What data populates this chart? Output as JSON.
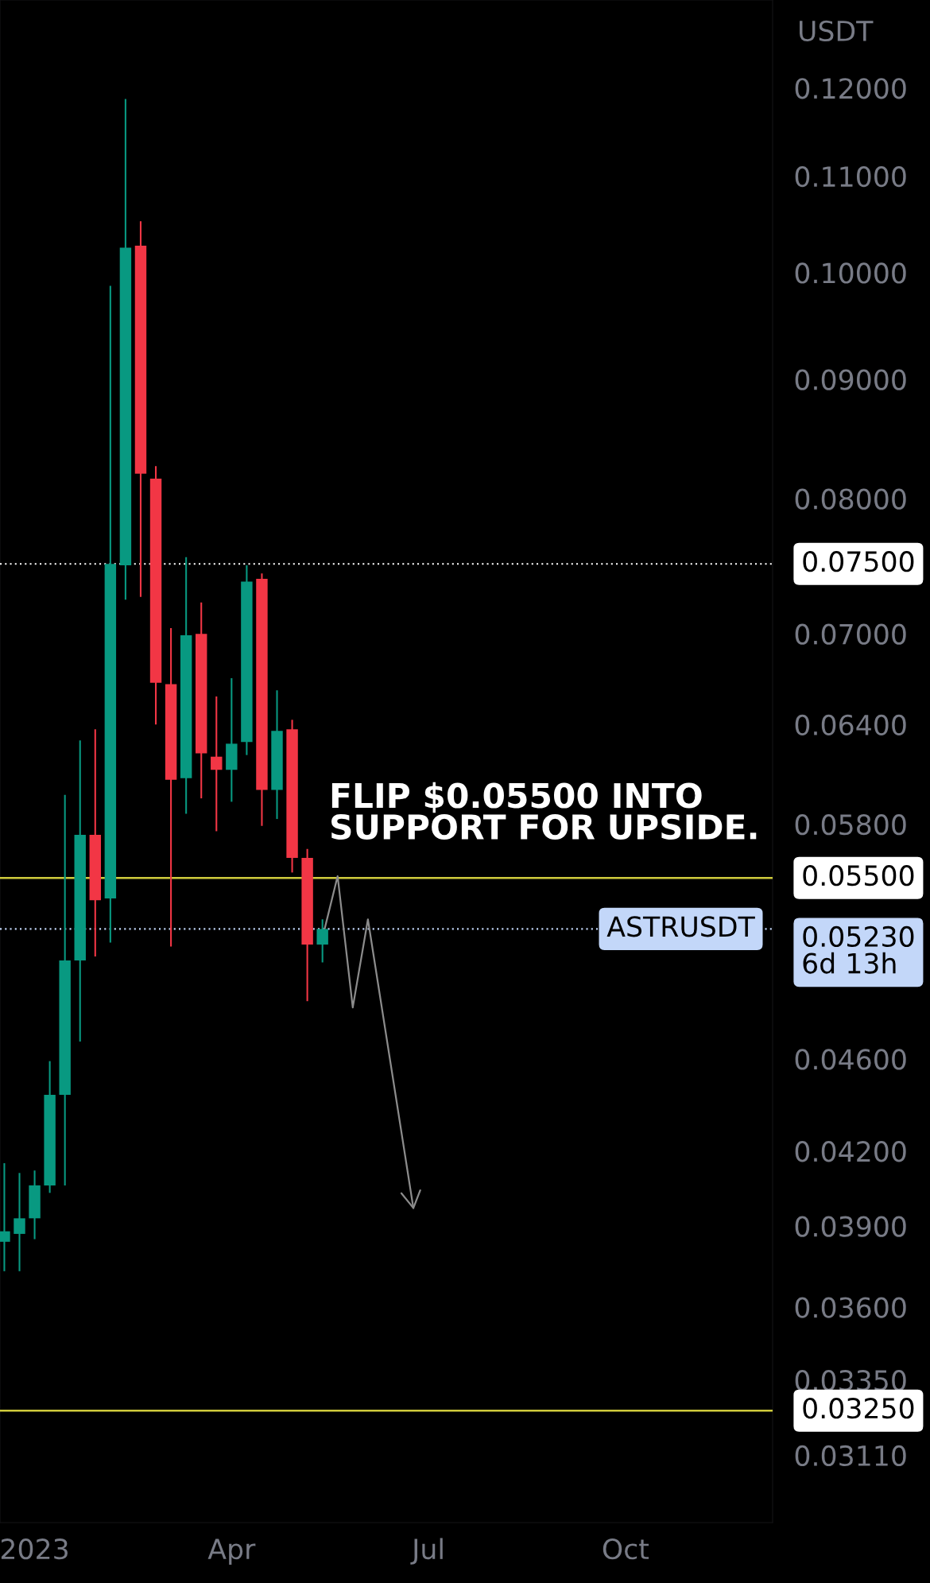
{
  "chart_data": {
    "type": "candlestick",
    "ylabel": "USDT",
    "annotations": [
      "FLIP $0.05500 INTO\nSUPPORT FOR UPSIDE.",
      {
        "text": "ASTRUSDT",
        "y": 0.0523
      }
    ],
    "x": [
      "2022-12-19",
      "2022-12-26",
      "2023-01-02",
      "2023-01-09",
      "2023-01-16",
      "2023-01-23",
      "2023-01-30",
      "2023-02-06",
      "2023-02-13",
      "2023-02-20",
      "2023-02-27",
      "2023-03-06",
      "2023-03-13",
      "2023-03-20",
      "2023-03-27",
      "2023-04-03",
      "2023-04-10",
      "2023-04-17",
      "2023-04-24",
      "2023-05-01",
      "2023-05-08",
      "2023-05-15"
    ],
    "ohlc": [
      [
        0.0384,
        0.0415,
        0.0373,
        0.0388
      ],
      [
        0.0387,
        0.0411,
        0.0373,
        0.0393
      ],
      [
        0.0393,
        0.0412,
        0.0385,
        0.0406
      ],
      [
        0.0406,
        0.0459,
        0.0403,
        0.0444
      ],
      [
        0.0444,
        0.0597,
        0.0406,
        0.0507
      ],
      [
        0.0507,
        0.063,
        0.0468,
        0.0574
      ],
      [
        0.0574,
        0.0637,
        0.0509,
        0.0538
      ],
      [
        0.0539,
        0.0987,
        0.0516,
        0.075
      ],
      [
        0.0749,
        0.1187,
        0.0724,
        0.1025
      ],
      [
        0.1027,
        0.1052,
        0.0726,
        0.082
      ],
      [
        0.0816,
        0.0826,
        0.064,
        0.0667
      ],
      [
        0.0666,
        0.0704,
        0.0514,
        0.0606
      ],
      [
        0.0607,
        0.0755,
        0.0586,
        0.0699
      ],
      [
        0.07,
        0.0722,
        0.0595,
        0.0622
      ],
      [
        0.062,
        0.0658,
        0.0576,
        0.0612
      ],
      [
        0.0612,
        0.067,
        0.0593,
        0.0628
      ],
      [
        0.0629,
        0.0749,
        0.0621,
        0.0737
      ],
      [
        0.0739,
        0.0743,
        0.0579,
        0.06
      ],
      [
        0.06,
        0.0662,
        0.0583,
        0.0636
      ],
      [
        0.0637,
        0.0643,
        0.0553,
        0.0561
      ],
      [
        0.0561,
        0.0566,
        0.0487,
        0.0515
      ],
      [
        0.0515,
        0.0528,
        0.0506,
        0.0523
      ]
    ],
    "colors": [
      "#089981",
      "#089981",
      "#089981",
      "#089981",
      "#089981",
      "#089981",
      "#f23645",
      "#089981",
      "#089981",
      "#f23645",
      "#f23645",
      "#f23645",
      "#089981",
      "#f23645",
      "#f23645",
      "#089981",
      "#089981",
      "#f23645",
      "#089981",
      "#f23645",
      "#f23645",
      "#089981"
    ],
    "series": [
      {
        "type": "line",
        "color": "#8c8c8c",
        "x": [
          "2023-05-16",
          "2023-05-22",
          "2023-05-29",
          "2023-06-05",
          "2023-06-26"
        ],
        "values": [
          0.0523,
          0.0551,
          0.0484,
          0.0528,
          0.0397
        ]
      }
    ],
    "ref_lines": [
      {
        "axis": "y",
        "value": 0.075,
        "label": "0.07500",
        "color": "#ffffff",
        "line_style": "dotted"
      },
      {
        "axis": "y",
        "value": 0.055,
        "label": "0.05500",
        "color": "#cfcb3c",
        "line_style": "solid"
      },
      {
        "axis": "y",
        "value": 0.0325,
        "label": "0.03250",
        "color": "#cfcb3c",
        "line_style": "solid"
      },
      {
        "axis": "y",
        "value": 0.0523,
        "label": "0.05230\n6d 13h",
        "color": "#c3d7f9",
        "line_style": "dotted"
      }
    ],
    "log": true,
    "xlim": [
      "2022-12-17",
      "2023-12-09"
    ],
    "ylim": [
      0.0291,
      0.1309
    ],
    "xticks": [
      {
        "value": "2023-01-02",
        "label": "2023"
      },
      {
        "value": "2023-04-03",
        "label": "Apr"
      },
      {
        "value": "2023-07-03",
        "label": "Jul"
      },
      {
        "value": "2023-10-02",
        "label": "Oct"
      }
    ],
    "yticks": [
      {
        "value": 0.12,
        "label": "0.12000"
      },
      {
        "value": 0.11,
        "label": "0.11000"
      },
      {
        "value": 0.1,
        "label": "0.10000"
      },
      {
        "value": 0.09,
        "label": "0.09000"
      },
      {
        "value": 0.08,
        "label": "0.08000"
      },
      {
        "value": 0.07,
        "label": "0.07000"
      },
      {
        "value": 0.064,
        "label": "0.06400"
      },
      {
        "value": 0.058,
        "label": "0.05800"
      },
      {
        "value": 0.046,
        "label": "0.04600"
      },
      {
        "value": 0.042,
        "label": "0.04200"
      },
      {
        "value": 0.039,
        "label": "0.03900"
      },
      {
        "value": 0.036,
        "label": "0.03600"
      },
      {
        "value": 0.0335,
        "label": "0.03350"
      },
      {
        "value": 0.0311,
        "label": "0.03110"
      }
    ]
  }
}
